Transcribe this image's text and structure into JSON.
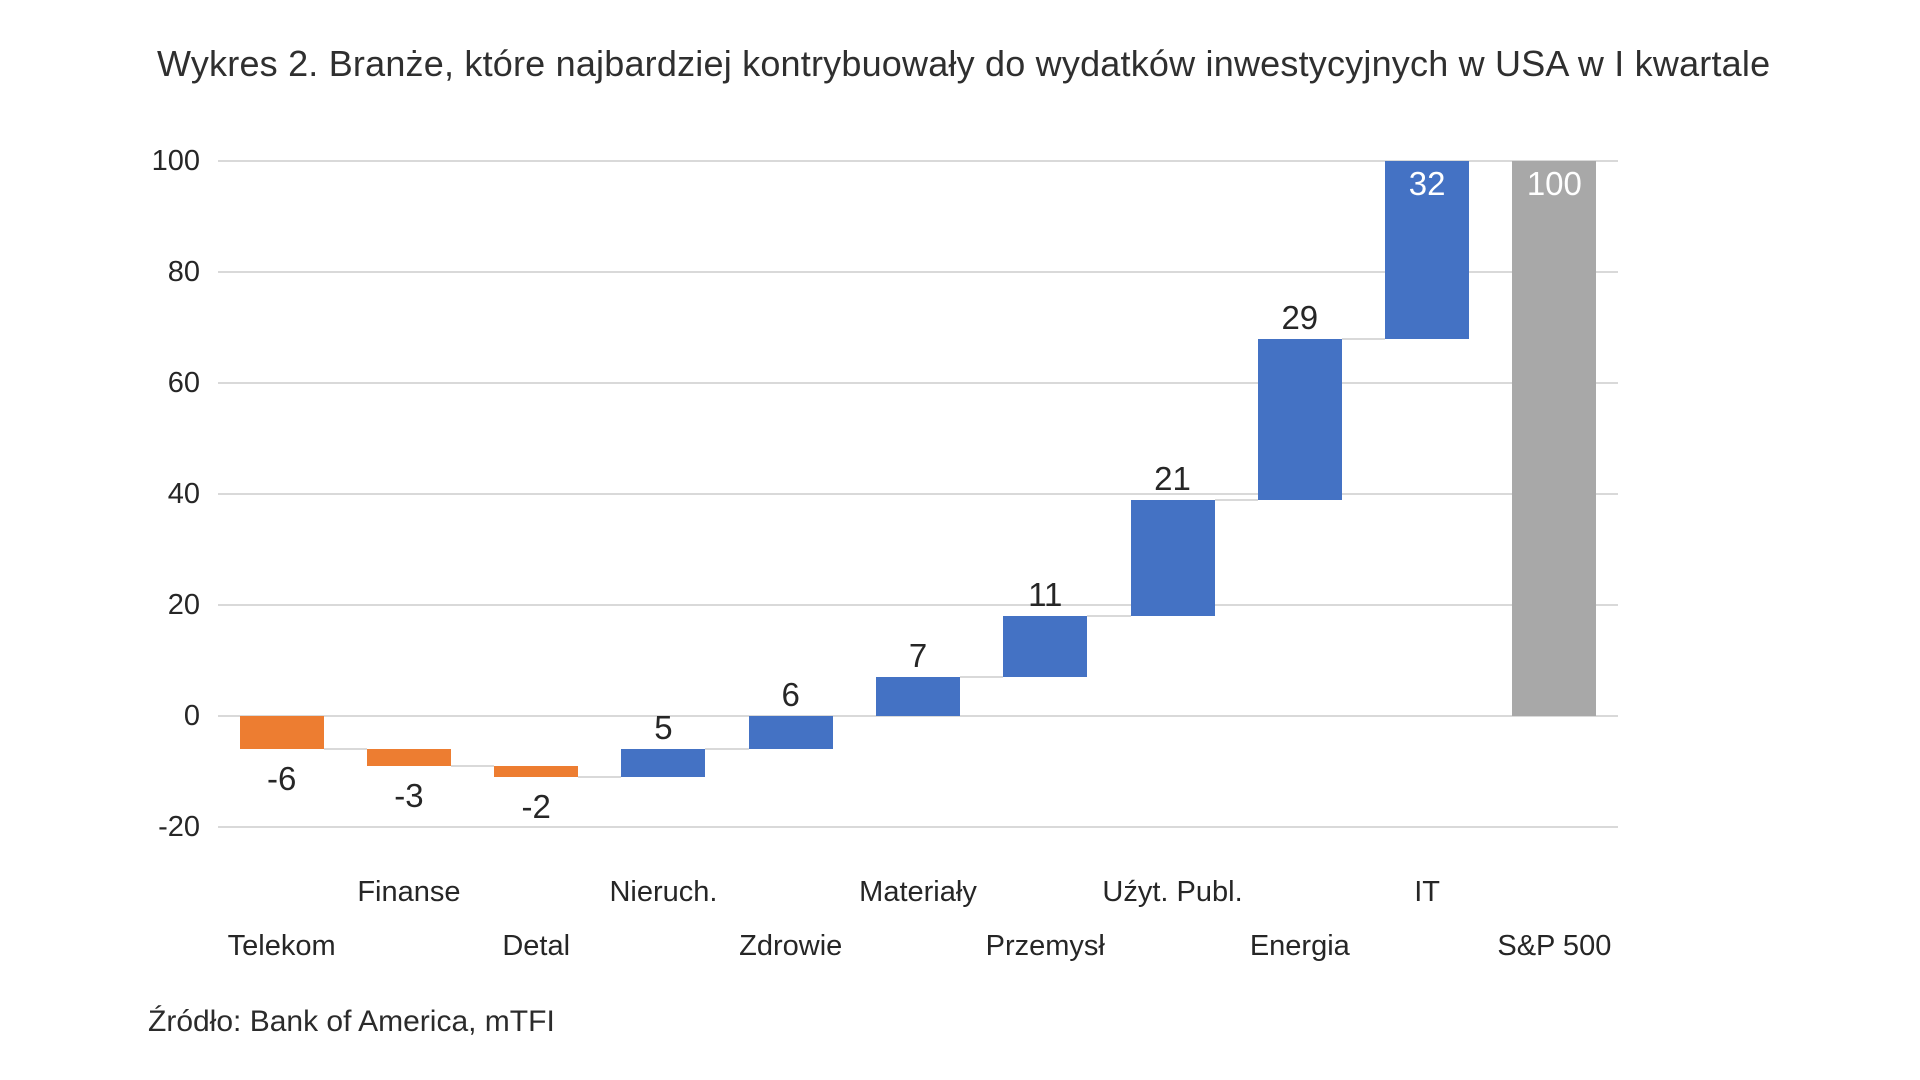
{
  "title": "Wykres 2. Branże, które najbardziej kontrybuowały do wydatków inwestycyjnych w USA w I kwartale",
  "source": "Źródło: Bank of America, mTFI",
  "chart_data": {
    "type": "bar",
    "subtype": "waterfall",
    "title": "Wykres 2. Branże, które najbardziej kontrybuowały do wydatków inwestycyjnych w USA w I kwartale",
    "categories": [
      "Telekom",
      "Finanse",
      "Detal",
      "Nieruch.",
      "Zdrowie",
      "Materiały",
      "Przemysł",
      "Uźyt. Publ.",
      "Energia",
      "IT",
      "S&P 500"
    ],
    "values": [
      -6,
      -3,
      -2,
      5,
      6,
      7,
      11,
      21,
      29,
      32,
      100
    ],
    "data_labels": [
      "-6",
      "-3",
      "-2",
      "5",
      "6",
      "7",
      "11",
      "21",
      "29",
      "32",
      "100"
    ],
    "bar_roles": [
      "negative",
      "negative",
      "negative",
      "positive",
      "positive",
      "positive",
      "positive",
      "positive",
      "positive",
      "positive",
      "total"
    ],
    "cumulative_start": [
      0,
      -6,
      -9,
      -11,
      -6,
      0,
      7,
      18,
      39,
      68,
      0
    ],
    "cumulative_end": [
      -6,
      -9,
      -11,
      -6,
      0,
      7,
      18,
      39,
      68,
      100,
      100
    ],
    "label_placement": [
      "below",
      "below",
      "below",
      "above",
      "above",
      "above",
      "above",
      "above",
      "above",
      "inside",
      "inside"
    ],
    "y_ticks": [
      100,
      80,
      60,
      40,
      20,
      0,
      -20
    ],
    "ylim": [
      -20,
      100
    ],
    "xlabel": "",
    "ylabel": "",
    "grid": true,
    "legend": "none",
    "colors": {
      "positive": "#4472C4",
      "negative": "#ED7D31",
      "total": "#A8A8A8",
      "gridline": "#D9D9D9",
      "connector": "#D9D9D9",
      "label_dark": "#262626",
      "label_light": "#FFFFFF"
    }
  }
}
